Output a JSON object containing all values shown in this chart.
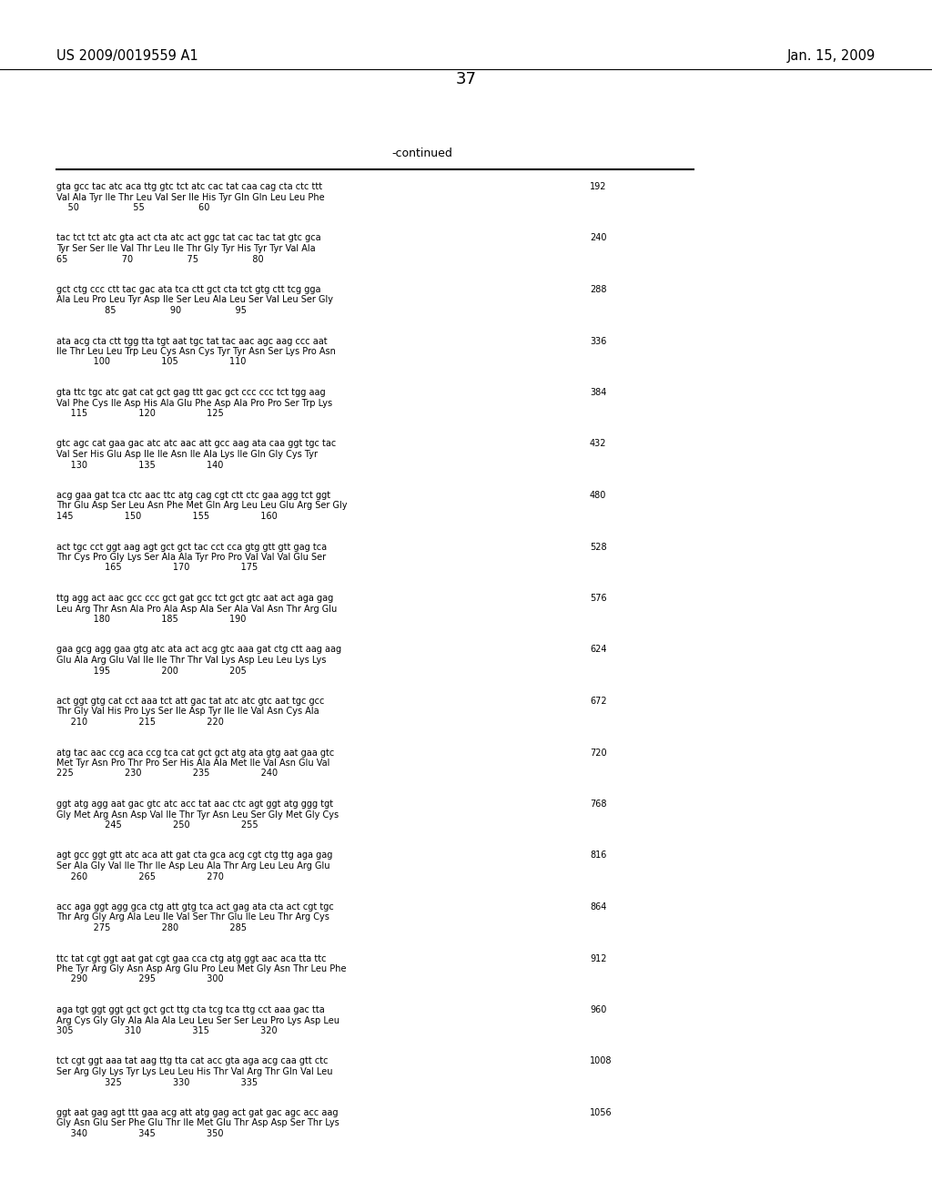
{
  "title_left": "US 2009/0019559 A1",
  "title_right": "Jan. 15, 2009",
  "page_number": "37",
  "continued_label": "-continued",
  "background_color": "#ffffff",
  "text_color": "#000000",
  "lines_content": [
    {
      "dna": "gta gcc tac atc aca ttg gtc tct atc cac tat caa cag cta ctc ttt",
      "aa": "Val Ala Tyr Ile Thr Leu Val Ser Ile His Tyr Gln Gln Leu Leu Phe",
      "nums": "    50                   55                   60",
      "count": "192"
    },
    {
      "dna": "tac tct tct atc gta act cta atc act ggc tat cac tac tat gtc gca",
      "aa": "Tyr Ser Ser Ile Val Thr Leu Ile Thr Gly Tyr His Tyr Tyr Val Ala",
      "nums": "65                   70                   75                   80",
      "count": "240"
    },
    {
      "dna": "gct ctg ccc ctt tac gac ata tca ctt gct cta tct gtg ctt tcg gga",
      "aa": "Ala Leu Pro Leu Tyr Asp Ile Ser Leu Ala Leu Ser Val Leu Ser Gly",
      "nums": "                 85                   90                   95",
      "count": "288"
    },
    {
      "dna": "ata acg cta ctt tgg tta tgt aat tgc tat tac aac agc aag ccc aat",
      "aa": "Ile Thr Leu Leu Trp Leu Cys Asn Cys Tyr Tyr Asn Ser Lys Pro Asn",
      "nums": "             100                  105                  110",
      "count": "336"
    },
    {
      "dna": "gta ttc tgc atc gat cat gct gag ttt gac gct ccc ccc tct tgg aag",
      "aa": "Val Phe Cys Ile Asp His Ala Glu Phe Asp Ala Pro Pro Ser Trp Lys",
      "nums": "     115                  120                  125",
      "count": "384"
    },
    {
      "dna": "gtc agc cat gaa gac atc atc aac att gcc aag ata caa ggt tgc tac",
      "aa": "Val Ser His Glu Asp Ile Ile Asn Ile Ala Lys Ile Gln Gly Cys Tyr",
      "nums": "     130                  135                  140",
      "count": "432"
    },
    {
      "dna": "acg gaa gat tca ctc aac ttc atg cag cgt ctt ctc gaa agg tct ggt",
      "aa": "Thr Glu Asp Ser Leu Asn Phe Met Gln Arg Leu Leu Glu Arg Ser Gly",
      "nums": "145                  150                  155                  160",
      "count": "480"
    },
    {
      "dna": "act tgc cct ggt aag agt gct gct tac cct cca gtg gtt gtt gag tca",
      "aa": "Thr Cys Pro Gly Lys Ser Ala Ala Tyr Pro Pro Val Val Val Glu Ser",
      "nums": "                 165                  170                  175",
      "count": "528"
    },
    {
      "dna": "ttg agg act aac gcc ccc gct gat gcc tct gct gtc aat act aga gag",
      "aa": "Leu Arg Thr Asn Ala Pro Ala Asp Ala Ser Ala Val Asn Thr Arg Glu",
      "nums": "             180                  185                  190",
      "count": "576"
    },
    {
      "dna": "gaa gcg agg gaa gtg atc ata act acg gtc aaa gat ctg ctt aag aag",
      "aa": "Glu Ala Arg Glu Val Ile Ile Thr Thr Val Lys Asp Leu Leu Lys Lys",
      "nums": "             195                  200                  205",
      "count": "624"
    },
    {
      "dna": "act ggt gtg cat cct aaa tct att gac tat atc atc gtc aat tgc gcc",
      "aa": "Thr Gly Val His Pro Lys Ser Ile Asp Tyr Ile Ile Val Asn Cys Ala",
      "nums": "     210                  215                  220",
      "count": "672"
    },
    {
      "dna": "atg tac aac ccg aca ccg tca cat gct gct atg ata gtg aat gaa gtc",
      "aa": "Met Tyr Asn Pro Thr Pro Ser His Ala Ala Met Ile Val Asn Glu Val",
      "nums": "225                  230                  235                  240",
      "count": "720"
    },
    {
      "dna": "ggt atg agg aat gac gtc atc acc tat aac ctc agt ggt atg ggg tgt",
      "aa": "Gly Met Arg Asn Asp Val Ile Thr Tyr Asn Leu Ser Gly Met Gly Cys",
      "nums": "                 245                  250                  255",
      "count": "768"
    },
    {
      "dna": "agt gcc ggt gtt atc aca att gat cta gca acg cgt ctg ttg aga gag",
      "aa": "Ser Ala Gly Val Ile Thr Ile Asp Leu Ala Thr Arg Leu Leu Arg Glu",
      "nums": "     260                  265                  270",
      "count": "816"
    },
    {
      "dna": "acc aga ggt agg gca ctg att gtg tca act gag ata cta act cgt tgc",
      "aa": "Thr Arg Gly Arg Ala Leu Ile Val Ser Thr Glu Ile Leu Thr Arg Cys",
      "nums": "             275                  280                  285",
      "count": "864"
    },
    {
      "dna": "ttc tat cgt ggt aat gat cgt gaa cca ctg atg ggt aac aca tta ttc",
      "aa": "Phe Tyr Arg Gly Asn Asp Arg Glu Pro Leu Met Gly Asn Thr Leu Phe",
      "nums": "     290                  295                  300",
      "count": "912"
    },
    {
      "dna": "aga tgt ggt ggt gct gct gct ttg cta tcg tca ttg cct aaa gac tta",
      "aa": "Arg Cys Gly Gly Ala Ala Ala Leu Leu Ser Ser Leu Pro Lys Asp Leu",
      "nums": "305                  310                  315                  320",
      "count": "960"
    },
    {
      "dna": "tct cgt ggt aaa tat aag ttg tta cat acc gta aga acg caa gtt ctc",
      "aa": "Ser Arg Gly Lys Tyr Lys Leu Leu His Thr Val Arg Thr Gln Val Leu",
      "nums": "                 325                  330                  335",
      "count": "1008"
    },
    {
      "dna": "ggt aat gag agt ttt gaa acg att atg gag act gat gac agc acc aag",
      "aa": "Gly Asn Glu Ser Phe Glu Thr Ile Met Glu Thr Asp Asp Ser Thr Lys",
      "nums": "     340                  345                  350",
      "count": "1056"
    }
  ]
}
